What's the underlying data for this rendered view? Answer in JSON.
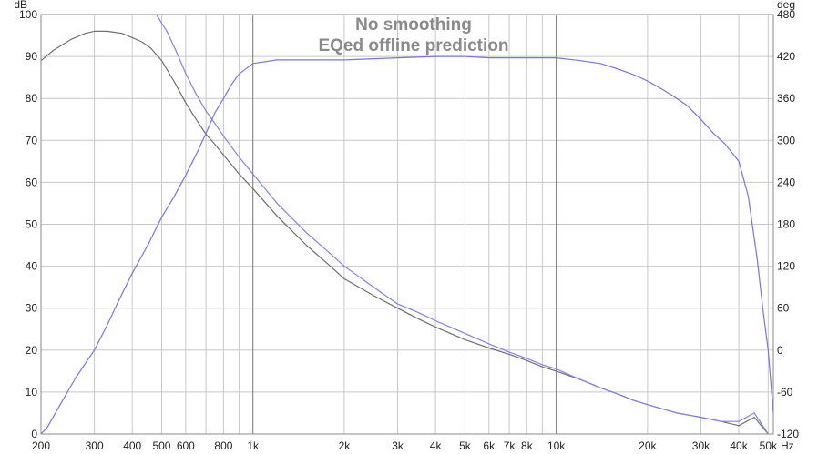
{
  "chart_data": {
    "type": "line",
    "title": "No smoothing",
    "subtitle": "EQed offline prediction",
    "xlabel": "",
    "x_unit": "Hz",
    "x_scale": "log",
    "xlim": [
      200,
      52000
    ],
    "x_ticks": [
      {
        "v": 200,
        "label": "200"
      },
      {
        "v": 300,
        "label": "300"
      },
      {
        "v": 400,
        "label": "400"
      },
      {
        "v": 500,
        "label": "500"
      },
      {
        "v": 600,
        "label": "600"
      },
      {
        "v": 800,
        "label": "800"
      },
      {
        "v": 1000,
        "label": "1k"
      },
      {
        "v": 2000,
        "label": "2k"
      },
      {
        "v": 3000,
        "label": "3k"
      },
      {
        "v": 4000,
        "label": "4k"
      },
      {
        "v": 5000,
        "label": "5k"
      },
      {
        "v": 6000,
        "label": "6k"
      },
      {
        "v": 7000,
        "label": "7k"
      },
      {
        "v": 8000,
        "label": "8k"
      },
      {
        "v": 10000,
        "label": "10k"
      },
      {
        "v": 20000,
        "label": "20k"
      },
      {
        "v": 30000,
        "label": "30k"
      },
      {
        "v": 40000,
        "label": "40k"
      },
      {
        "v": 50000,
        "label": "50k"
      }
    ],
    "y_left": {
      "unit": "dB",
      "min": 0,
      "max": 100,
      "ticks": [
        0,
        10,
        20,
        30,
        40,
        50,
        60,
        70,
        80,
        90,
        100
      ]
    },
    "y_right": {
      "unit": "deg",
      "min": -120,
      "max": 480,
      "ticks": [
        -120,
        -60,
        0,
        60,
        120,
        180,
        240,
        300,
        360,
        420,
        480
      ]
    },
    "grid": true,
    "series": [
      {
        "axis": "left",
        "color": "#6f6f6f",
        "x": [
          200,
          220,
          250,
          280,
          300,
          330,
          370,
          400,
          430,
          460,
          500,
          550,
          600,
          650,
          700,
          750,
          800,
          900,
          1000,
          1200,
          1500,
          1800,
          2000,
          2500,
          3000,
          3500,
          4000,
          5000,
          6000,
          7000,
          8000,
          9000,
          10000,
          12000,
          14000,
          16000,
          18000,
          20000,
          25000,
          30000,
          35000,
          40000,
          45000,
          50000
        ],
        "y": [
          89,
          91.5,
          94,
          95.5,
          96,
          96,
          95.5,
          94.5,
          93.5,
          92,
          89,
          84,
          79,
          75,
          71.5,
          69,
          66.5,
          62,
          58.5,
          52,
          45,
          40,
          37,
          33,
          30,
          27.5,
          25.5,
          22.5,
          20.5,
          19,
          17.5,
          16,
          15,
          13,
          11,
          9.5,
          8,
          7,
          5,
          4,
          3,
          2,
          4,
          0
        ]
      },
      {
        "axis": "left",
        "color": "#8080f8",
        "x": [
          480,
          520,
          560,
          600,
          650,
          700,
          750,
          800,
          900,
          1000,
          1200,
          1500,
          1800,
          2000,
          2500,
          3000,
          3500,
          4000,
          5000,
          6000,
          7000,
          8000,
          9000,
          10000,
          12000,
          14000,
          16000,
          18000,
          20000,
          25000,
          30000,
          35000,
          40000,
          45000,
          50000
        ],
        "y": [
          100,
          96,
          91,
          86,
          81,
          77,
          74,
          71,
          66,
          62,
          55,
          48,
          43,
          40,
          35,
          31,
          29,
          27,
          24,
          21.5,
          19.5,
          18,
          16.5,
          15.5,
          13,
          11,
          9.5,
          8,
          7,
          5,
          4,
          3,
          3,
          5,
          0
        ]
      },
      {
        "axis": "right",
        "color": "#7474f0",
        "x": [
          200,
          210,
          230,
          260,
          300,
          330,
          360,
          400,
          450,
          500,
          550,
          600,
          650,
          700,
          750,
          800,
          850,
          900,
          1000,
          1200,
          1500,
          2000,
          3000,
          4000,
          5000,
          6000,
          7000,
          8000,
          9000,
          10000,
          12000,
          14000,
          16000,
          18000,
          20000,
          22000,
          24000,
          27000,
          30000,
          33000,
          36000,
          40000,
          43000,
          46000,
          48000,
          50000,
          52000
        ],
        "y": [
          -120,
          -110,
          -80,
          -40,
          0,
          35,
          70,
          110,
          150,
          190,
          220,
          250,
          280,
          310,
          340,
          360,
          380,
          395,
          410,
          415,
          415,
          415,
          418,
          420,
          420,
          418,
          418,
          418,
          418,
          418,
          414,
          410,
          402,
          394,
          385,
          375,
          365,
          350,
          330,
          310,
          295,
          270,
          220,
          130,
          60,
          0,
          -90
        ]
      }
    ]
  }
}
